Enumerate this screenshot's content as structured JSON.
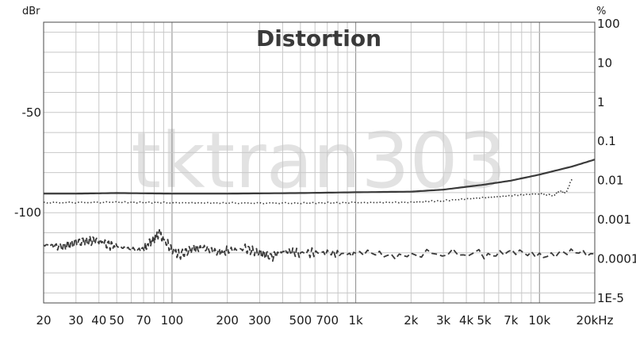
{
  "chart_data": {
    "type": "line",
    "title": "Distortion",
    "watermark": "tktran303",
    "xscale": "log",
    "xlim": [
      20,
      20000
    ],
    "x_ticks": [
      20,
      30,
      40,
      50,
      70,
      100,
      200,
      300,
      500,
      700,
      1000,
      2000,
      3000,
      4000,
      5000,
      7000,
      10000,
      20000
    ],
    "x_tick_labels": [
      "20",
      "30",
      "40",
      "50",
      "70",
      "100",
      "200",
      "300",
      "500",
      "700",
      "1k",
      "2k",
      "3k",
      "4k",
      "5k",
      "7k",
      "10k",
      "20kHz"
    ],
    "left_axis": {
      "unit": "dBr",
      "ylim": [
        -145,
        -5
      ],
      "ticks": [
        -50,
        -100
      ],
      "tick_labels": [
        "-50",
        "-100"
      ]
    },
    "right_axis": {
      "unit": "%",
      "scale": "log",
      "tick_labels": [
        "100",
        "10",
        "1",
        "0.1",
        "0.01",
        "0.001",
        "0.0001",
        "1E-5"
      ]
    },
    "grid": true,
    "series": [
      {
        "style": "solid",
        "color": "#3a3a3a",
        "x": [
          20,
          30,
          50,
          100,
          200,
          500,
          1000,
          2000,
          3000,
          5000,
          7000,
          10000,
          15000,
          20000
        ],
        "y": [
          -90.5,
          -90.5,
          -90.2,
          -90.5,
          -90.5,
          -90.2,
          -89.8,
          -89.5,
          -88.5,
          -86,
          -84,
          -81,
          -77,
          -73.5
        ]
      },
      {
        "style": "dotted",
        "color": "#3a3a3a",
        "x": [
          20,
          50,
          100,
          200,
          500,
          1000,
          2000,
          3000,
          5000,
          7000,
          10000,
          12000,
          13000,
          14000,
          15000
        ],
        "y": [
          -95,
          -94.8,
          -95,
          -95.2,
          -95.2,
          -95,
          -94.8,
          -94,
          -92.5,
          -91.5,
          -90.5,
          -91.5,
          -89,
          -90,
          -83
        ]
      },
      {
        "style": "dashed",
        "color": "#3a3a3a",
        "x": [
          20,
          25,
          30,
          35,
          40,
          45,
          50,
          60,
          70,
          75,
          80,
          85,
          90,
          100,
          110,
          130,
          150,
          180,
          200,
          250,
          300,
          350,
          400,
          500,
          700,
          1000,
          2000,
          5000,
          10000,
          20000
        ],
        "y": [
          -116,
          -117,
          -115,
          -114,
          -114,
          -116,
          -117,
          -118,
          -118.5,
          -115,
          -113,
          -110,
          -113,
          -118.5,
          -121,
          -118,
          -117.5,
          -120,
          -119,
          -118,
          -120,
          -122,
          -119,
          -120,
          -120,
          -121,
          -120.5,
          -120.5,
          -120.5,
          -120.5
        ]
      }
    ]
  }
}
